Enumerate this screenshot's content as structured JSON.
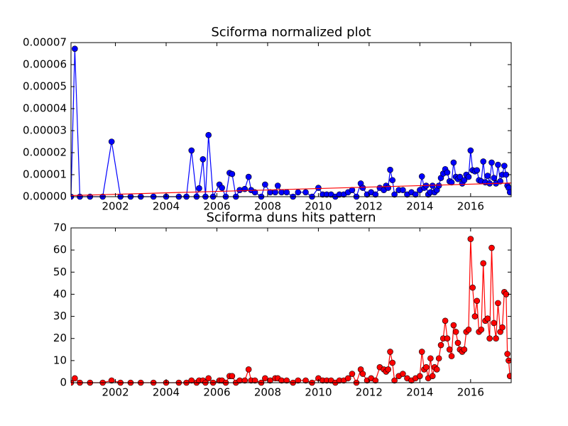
{
  "chart_data": [
    {
      "type": "line",
      "title": "Sciforma normalized plot",
      "x": [
        2000.25,
        2000.4,
        2000.6,
        2001.0,
        2001.5,
        2001.85,
        2002.2,
        2002.6,
        2003.0,
        2003.5,
        2004.0,
        2004.5,
        2004.8,
        2005.0,
        2005.2,
        2005.3,
        2005.45,
        2005.55,
        2005.67,
        2005.85,
        2006.1,
        2006.2,
        2006.35,
        2006.5,
        2006.6,
        2006.75,
        2006.9,
        2007.1,
        2007.25,
        2007.35,
        2007.5,
        2007.75,
        2007.9,
        2008.1,
        2008.3,
        2008.4,
        2008.55,
        2008.75,
        2009.0,
        2009.2,
        2009.5,
        2009.75,
        2010.0,
        2010.17,
        2010.33,
        2010.5,
        2010.67,
        2010.83,
        2011.0,
        2011.17,
        2011.33,
        2011.5,
        2011.67,
        2011.75,
        2011.92,
        2012.08,
        2012.25,
        2012.42,
        2012.58,
        2012.67,
        2012.75,
        2012.83,
        2012.92,
        2013.0,
        2013.17,
        2013.33,
        2013.5,
        2013.67,
        2013.83,
        2014.0,
        2014.08,
        2014.17,
        2014.25,
        2014.33,
        2014.42,
        2014.5,
        2014.58,
        2014.67,
        2014.75,
        2014.83,
        2014.92,
        2015.0,
        2015.08,
        2015.17,
        2015.25,
        2015.33,
        2015.42,
        2015.5,
        2015.58,
        2015.67,
        2015.75,
        2015.83,
        2015.92,
        2016.0,
        2016.08,
        2016.17,
        2016.25,
        2016.33,
        2016.42,
        2016.5,
        2016.58,
        2016.67,
        2016.75,
        2016.83,
        2016.92,
        2017.0,
        2017.08,
        2017.17,
        2017.25,
        2017.33,
        2017.4,
        2017.45,
        2017.5,
        2017.55
      ],
      "series": [
        {
          "color": "#0000ff",
          "markers": true,
          "values": [
            0,
            6.72e-05,
            0,
            0,
            0,
            2.5e-05,
            0,
            0,
            0,
            0,
            0,
            0,
            0,
            2.1e-05,
            0,
            3.8e-06,
            1.7e-05,
            0,
            2.8e-05,
            0,
            5.5e-06,
            4e-06,
            0,
            1.08e-05,
            1.03e-05,
            0,
            3e-06,
            3.5e-06,
            9e-06,
            3e-06,
            2e-06,
            0,
            5.5e-06,
            2e-06,
            2e-06,
            5e-06,
            2e-06,
            2e-06,
            0,
            2e-06,
            2e-06,
            0,
            4e-06,
            1e-06,
            1e-06,
            1e-06,
            0,
            1e-06,
            1e-06,
            2e-06,
            3e-06,
            0,
            6e-06,
            4e-06,
            1e-06,
            2e-06,
            1e-06,
            4e-06,
            3e-06,
            5e-06,
            4e-06,
            1.22e-05,
            7.5e-06,
            1e-06,
            3e-06,
            3e-06,
            1e-06,
            2e-06,
            1e-06,
            3e-06,
            9.2e-06,
            4e-06,
            5e-06,
            1e-06,
            2e-06,
            5e-06,
            2e-06,
            3e-06,
            5e-06,
            8.5e-06,
            1.05e-05,
            1.25e-05,
            1.1e-05,
            7e-06,
            6.5e-06,
            1.55e-05,
            9e-06,
            8e-06,
            9e-06,
            6e-06,
            7.5e-06,
            1e-05,
            9e-06,
            2.1e-05,
            1.2e-05,
            1.15e-05,
            1.2e-05,
            7.5e-06,
            7e-06,
            1.6e-05,
            6.5e-06,
            9.5e-06,
            6e-06,
            1.55e-05,
            8.5e-06,
            6e-06,
            1.45e-05,
            7e-06,
            1e-05,
            1.4e-05,
            1e-05,
            5e-06,
            4e-06,
            2e-06
          ]
        },
        {
          "color": "#ff0000",
          "markers": false,
          "x": [
            2000.25,
            2017.6
          ],
          "values": [
            5e-07,
            6.2e-06
          ]
        }
      ],
      "xlim": [
        2000.25,
        2017.6
      ],
      "xticks": [
        2002,
        2004,
        2006,
        2008,
        2010,
        2012,
        2014,
        2016
      ],
      "ylim": [
        0,
        7e-05
      ],
      "yticks": [
        {
          "value": 0,
          "label": "0.00000"
        },
        1e-05,
        2e-05,
        3e-05,
        4e-05,
        5e-05,
        6e-05,
        7e-05
      ]
    },
    {
      "type": "line",
      "title": "Sciforma duns hits pattern",
      "x": [
        2000.25,
        2000.4,
        2000.6,
        2001.0,
        2001.5,
        2001.85,
        2002.2,
        2002.6,
        2003.0,
        2003.5,
        2004.0,
        2004.5,
        2004.8,
        2005.0,
        2005.2,
        2005.3,
        2005.45,
        2005.55,
        2005.67,
        2005.85,
        2006.1,
        2006.2,
        2006.35,
        2006.5,
        2006.6,
        2006.75,
        2006.9,
        2007.1,
        2007.25,
        2007.35,
        2007.5,
        2007.75,
        2007.9,
        2008.1,
        2008.3,
        2008.4,
        2008.55,
        2008.75,
        2009.0,
        2009.2,
        2009.5,
        2009.75,
        2010.0,
        2010.17,
        2010.33,
        2010.5,
        2010.67,
        2010.83,
        2011.0,
        2011.17,
        2011.33,
        2011.5,
        2011.67,
        2011.75,
        2011.92,
        2012.08,
        2012.25,
        2012.42,
        2012.58,
        2012.67,
        2012.75,
        2012.83,
        2012.92,
        2013.0,
        2013.17,
        2013.33,
        2013.5,
        2013.67,
        2013.83,
        2014.0,
        2014.08,
        2014.17,
        2014.25,
        2014.33,
        2014.42,
        2014.5,
        2014.58,
        2014.67,
        2014.75,
        2014.83,
        2014.92,
        2015.0,
        2015.08,
        2015.17,
        2015.25,
        2015.33,
        2015.42,
        2015.5,
        2015.58,
        2015.67,
        2015.75,
        2015.83,
        2015.92,
        2016.0,
        2016.08,
        2016.17,
        2016.25,
        2016.33,
        2016.42,
        2016.5,
        2016.58,
        2016.67,
        2016.75,
        2016.83,
        2016.92,
        2017.0,
        2017.08,
        2017.17,
        2017.25,
        2017.33,
        2017.4,
        2017.45,
        2017.5,
        2017.55
      ],
      "series": [
        {
          "color": "#ff0000",
          "markers": true,
          "values": [
            0,
            2,
            0,
            0,
            0,
            1,
            0,
            0,
            0,
            0,
            0,
            0,
            0,
            1,
            0,
            1,
            1,
            0,
            2,
            0,
            1,
            1,
            0,
            3,
            3,
            0,
            1,
            1,
            6,
            1,
            1,
            0,
            2,
            1,
            2,
            2,
            1,
            1,
            0,
            1,
            1,
            0,
            2,
            1,
            1,
            1,
            0,
            1,
            1,
            2,
            4,
            0,
            6,
            4,
            1,
            2,
            1,
            7,
            6,
            5,
            6,
            14,
            9,
            1,
            3,
            4,
            2,
            1,
            2,
            3,
            14,
            6,
            7,
            2,
            11,
            3,
            7,
            6,
            11,
            17,
            20,
            28,
            20,
            15,
            12,
            26,
            23,
            18,
            15,
            14,
            15,
            23,
            24,
            65,
            43,
            30,
            37,
            23,
            24,
            54,
            28,
            29,
            20,
            61,
            27,
            20,
            36,
            23,
            25,
            41,
            40,
            13,
            10,
            3
          ]
        }
      ],
      "xlim": [
        2000.25,
        2017.6
      ],
      "xticks": [
        2002,
        2004,
        2006,
        2008,
        2010,
        2012,
        2014,
        2016
      ],
      "ylim": [
        0,
        70
      ],
      "yticks": [
        0,
        10,
        20,
        30,
        40,
        50,
        60,
        70
      ]
    }
  ]
}
